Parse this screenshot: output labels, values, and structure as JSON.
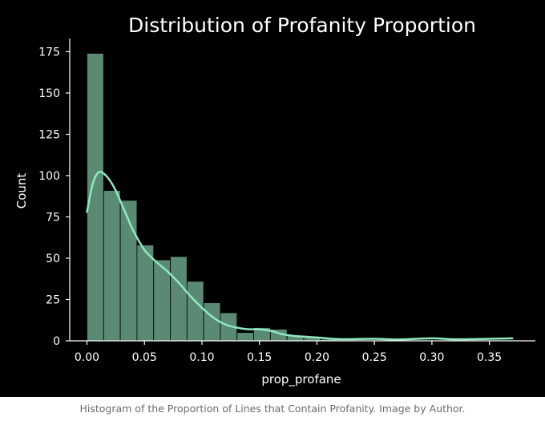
{
  "caption": "Histogram of the Proportion of Lines that Contain Profanity. Image by Author.",
  "chart_data": {
    "type": "histogram",
    "title": "Distribution of Profanity Proportion",
    "xlabel": "prop_profane",
    "ylabel": "Count",
    "xlim": [
      -0.015,
      0.39
    ],
    "ylim": [
      0,
      183
    ],
    "xticks": [
      0.0,
      0.05,
      0.1,
      0.15,
      0.2,
      0.25,
      0.3,
      0.35
    ],
    "xtick_labels": [
      "0.00",
      "0.05",
      "0.10",
      "0.15",
      "0.20",
      "0.25",
      "0.30",
      "0.35"
    ],
    "yticks": [
      0,
      25,
      50,
      75,
      100,
      125,
      150,
      175
    ],
    "ytick_labels": [
      "0",
      "25",
      "50",
      "75",
      "100",
      "125",
      "150",
      "175"
    ],
    "bin_width": 0.0145,
    "bins": [
      {
        "x0": 0.0,
        "x1": 0.0145,
        "count": 174
      },
      {
        "x0": 0.0145,
        "x1": 0.029,
        "count": 91
      },
      {
        "x0": 0.029,
        "x1": 0.0435,
        "count": 85
      },
      {
        "x0": 0.0435,
        "x1": 0.058,
        "count": 58
      },
      {
        "x0": 0.058,
        "x1": 0.0725,
        "count": 49
      },
      {
        "x0": 0.0725,
        "x1": 0.087,
        "count": 51
      },
      {
        "x0": 0.087,
        "x1": 0.1015,
        "count": 36
      },
      {
        "x0": 0.1015,
        "x1": 0.116,
        "count": 23
      },
      {
        "x0": 0.116,
        "x1": 0.1305,
        "count": 17
      },
      {
        "x0": 0.1305,
        "x1": 0.145,
        "count": 5
      },
      {
        "x0": 0.145,
        "x1": 0.1595,
        "count": 8
      },
      {
        "x0": 0.1595,
        "x1": 0.174,
        "count": 7
      },
      {
        "x0": 0.174,
        "x1": 0.1885,
        "count": 3
      },
      {
        "x0": 0.1885,
        "x1": 0.203,
        "count": 2
      },
      {
        "x0": 0.203,
        "x1": 0.2175,
        "count": 1
      },
      {
        "x0": 0.2175,
        "x1": 0.232,
        "count": 0
      },
      {
        "x0": 0.232,
        "x1": 0.2465,
        "count": 0
      },
      {
        "x0": 0.2465,
        "x1": 0.261,
        "count": 0
      },
      {
        "x0": 0.261,
        "x1": 0.2755,
        "count": 0
      },
      {
        "x0": 0.2755,
        "x1": 0.29,
        "count": 0
      },
      {
        "x0": 0.29,
        "x1": 0.3045,
        "count": 0
      },
      {
        "x0": 0.3045,
        "x1": 0.319,
        "count": 0
      },
      {
        "x0": 0.319,
        "x1": 0.3335,
        "count": 0
      },
      {
        "x0": 0.3335,
        "x1": 0.348,
        "count": 0
      },
      {
        "x0": 0.348,
        "x1": 0.3625,
        "count": 0
      }
    ],
    "kde": {
      "x": [
        0.0,
        0.005,
        0.01,
        0.015,
        0.02,
        0.025,
        0.03,
        0.035,
        0.04,
        0.05,
        0.06,
        0.07,
        0.08,
        0.09,
        0.1,
        0.11,
        0.12,
        0.13,
        0.14,
        0.15,
        0.16,
        0.17,
        0.18,
        0.2,
        0.22,
        0.25,
        0.27,
        0.3,
        0.32,
        0.35,
        0.37
      ],
      "y": [
        78,
        95,
        102,
        101,
        97,
        91,
        83,
        75,
        67,
        55,
        48,
        42,
        35,
        27,
        20,
        14,
        10,
        8,
        7,
        7,
        6,
        4,
        3,
        2,
        1,
        1.2,
        0.8,
        1.5,
        0.9,
        1.2,
        1.5
      ]
    },
    "grid": false,
    "colors": {
      "background": "#000000",
      "bar_fill": "#5a8a74",
      "bar_edge": "#000000",
      "kde_line": "#8fe8c0",
      "text": "#ffffff",
      "axis": "#ffffff"
    }
  }
}
